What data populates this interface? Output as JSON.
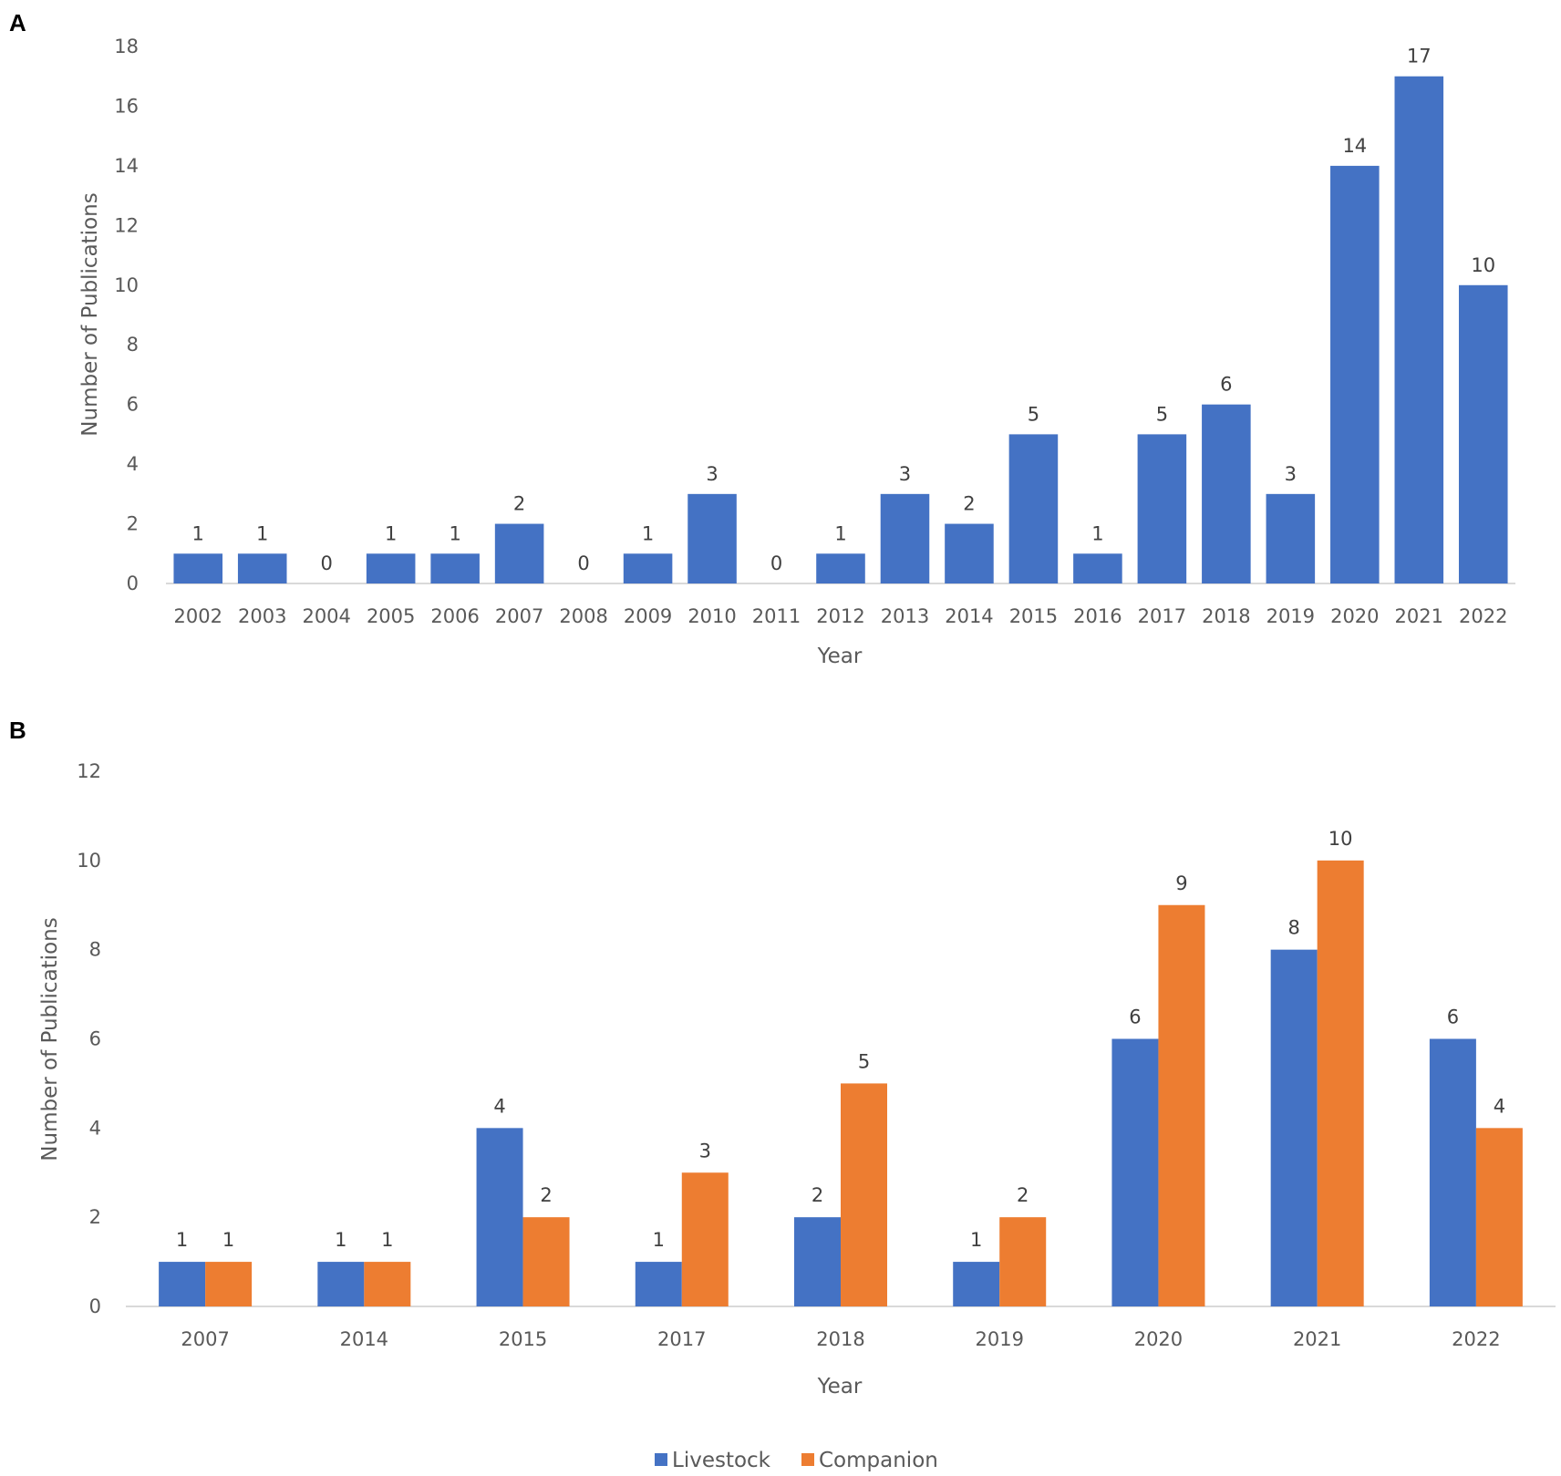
{
  "chart_data": [
    {
      "panel": "A",
      "type": "bar",
      "categories": [
        "2002",
        "2003",
        "2004",
        "2005",
        "2006",
        "2007",
        "2008",
        "2009",
        "2010",
        "2011",
        "2012",
        "2013",
        "2014",
        "2015",
        "2016",
        "2017",
        "2018",
        "2019",
        "2020",
        "2021",
        "2022"
      ],
      "values": [
        1,
        1,
        0,
        1,
        1,
        2,
        0,
        1,
        3,
        0,
        1,
        3,
        2,
        5,
        1,
        5,
        6,
        3,
        14,
        17,
        10
      ],
      "yticks": [
        0,
        2,
        4,
        6,
        8,
        10,
        12,
        14,
        16,
        18
      ],
      "ylim": [
        0,
        18
      ],
      "xlabel": "Year",
      "ylabel": "Number of Publications",
      "color": "#4472c4",
      "grid": false
    },
    {
      "panel": "B",
      "type": "bar",
      "categories": [
        "2007",
        "2014",
        "2015",
        "2017",
        "2018",
        "2019",
        "2020",
        "2021",
        "2022"
      ],
      "series": [
        {
          "name": "Livestock",
          "values": [
            1,
            1,
            4,
            1,
            2,
            1,
            6,
            8,
            6
          ],
          "color": "#4472c4"
        },
        {
          "name": "Companion",
          "values": [
            1,
            1,
            2,
            3,
            5,
            2,
            9,
            10,
            4
          ],
          "color": "#ed7d31"
        }
      ],
      "yticks": [
        0,
        2,
        4,
        6,
        8,
        10,
        12
      ],
      "ylim": [
        0,
        12
      ],
      "xlabel": "Year",
      "ylabel": "Number of Publications",
      "legend": "bottom",
      "grid": false
    }
  ]
}
